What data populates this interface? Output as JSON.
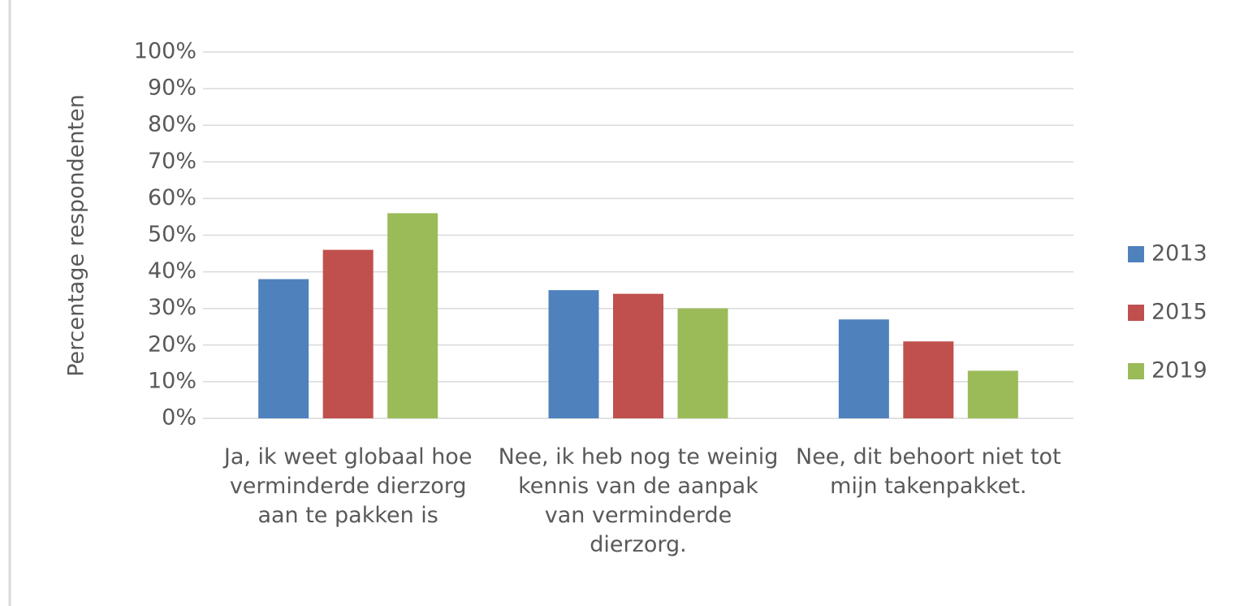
{
  "chart_data": {
    "type": "bar",
    "ylabel": "Percentage respondenten",
    "categories": [
      "Ja, ik weet globaal hoe verminderde dierzorg aan te pakken is",
      "Nee, ik heb nog te weinig kennis van de aanpak van verminderde dierzorg.",
      "Nee, dit behoort niet tot mijn takenpakket."
    ],
    "series": [
      {
        "name": "2013",
        "color": "#4f81bd",
        "values": [
          38,
          35,
          27
        ]
      },
      {
        "name": "2015",
        "color": "#c0504d",
        "values": [
          46,
          34,
          21
        ]
      },
      {
        "name": "2019",
        "color": "#9bbb59",
        "values": [
          56,
          30,
          13
        ]
      }
    ],
    "ylim": [
      0,
      100
    ],
    "yticks": [
      {
        "value": 0,
        "label": "0%"
      },
      {
        "value": 10,
        "label": "10%"
      },
      {
        "value": 20,
        "label": "20%"
      },
      {
        "value": 30,
        "label": "30%"
      },
      {
        "value": 40,
        "label": "40%"
      },
      {
        "value": 50,
        "label": "50%"
      },
      {
        "value": 60,
        "label": "60%"
      },
      {
        "value": 70,
        "label": "70%"
      },
      {
        "value": 80,
        "label": "80%"
      },
      {
        "value": 90,
        "label": "90%"
      },
      {
        "value": 100,
        "label": "100%"
      }
    ],
    "grid": true,
    "legend": "right"
  }
}
